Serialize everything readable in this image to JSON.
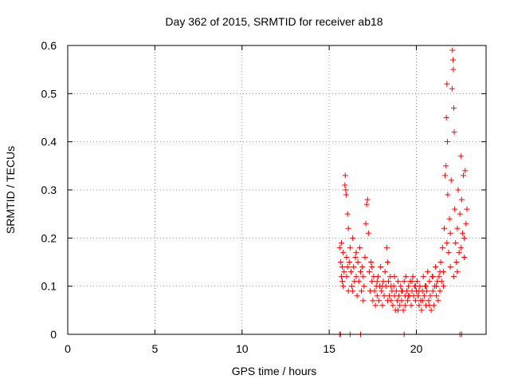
{
  "chart_data": {
    "type": "scatter",
    "title": "Day 362 of 2015, SRMTID for receiver ab18",
    "xlabel": "GPS time / hours",
    "ylabel": "SRMTID / TECUs",
    "xlim": [
      0,
      24
    ],
    "ylim": [
      0,
      0.6
    ],
    "xticks": [
      "0",
      "5",
      "10",
      "15",
      "20"
    ],
    "yticks": [
      "0",
      "0.1",
      "0.2",
      "0.3",
      "0.4",
      "0.5",
      "0.6"
    ],
    "grid": true,
    "marker": "+",
    "color": "#ff0000",
    "series": [
      {
        "name": "SRMTID",
        "points": [
          [
            15.6,
            0.0
          ],
          [
            15.65,
            0.0
          ],
          [
            16.2,
            0.0
          ],
          [
            16.8,
            0.0
          ],
          [
            19.3,
            0.0
          ],
          [
            22.5,
            0.0
          ],
          [
            22.6,
            0.0
          ],
          [
            15.6,
            0.18
          ],
          [
            15.65,
            0.15
          ],
          [
            15.7,
            0.12
          ],
          [
            15.7,
            0.19
          ],
          [
            15.75,
            0.14
          ],
          [
            15.8,
            0.1
          ],
          [
            15.8,
            0.17
          ],
          [
            15.85,
            0.13
          ],
          [
            15.9,
            0.31
          ],
          [
            15.92,
            0.33
          ],
          [
            15.95,
            0.3
          ],
          [
            15.97,
            0.29
          ],
          [
            16.0,
            0.16
          ],
          [
            16.0,
            0.12
          ],
          [
            16.05,
            0.25
          ],
          [
            16.1,
            0.22
          ],
          [
            16.1,
            0.09
          ],
          [
            16.15,
            0.15
          ],
          [
            16.2,
            0.18
          ],
          [
            16.25,
            0.13
          ],
          [
            16.3,
            0.1
          ],
          [
            16.35,
            0.2
          ],
          [
            16.4,
            0.14
          ],
          [
            16.45,
            0.11
          ],
          [
            16.5,
            0.16
          ],
          [
            16.55,
            0.12
          ],
          [
            16.6,
            0.08
          ],
          [
            16.65,
            0.15
          ],
          [
            16.7,
            0.11
          ],
          [
            16.75,
            0.18
          ],
          [
            16.8,
            0.13
          ],
          [
            16.85,
            0.09
          ],
          [
            16.9,
            0.14
          ],
          [
            16.95,
            0.12
          ],
          [
            17.0,
            0.1
          ],
          [
            17.05,
            0.16
          ],
          [
            17.1,
            0.23
          ],
          [
            17.15,
            0.27
          ],
          [
            17.2,
            0.28
          ],
          [
            17.25,
            0.21
          ],
          [
            17.3,
            0.13
          ],
          [
            17.35,
            0.09
          ],
          [
            17.4,
            0.15
          ],
          [
            17.45,
            0.11
          ],
          [
            17.5,
            0.07
          ],
          [
            17.55,
            0.12
          ],
          [
            17.6,
            0.09
          ],
          [
            17.65,
            0.06
          ],
          [
            17.7,
            0.1
          ],
          [
            17.75,
            0.08
          ],
          [
            17.8,
            0.12
          ],
          [
            17.85,
            0.07
          ],
          [
            17.9,
            0.1
          ],
          [
            17.95,
            0.14
          ],
          [
            18.0,
            0.09
          ],
          [
            18.05,
            0.06
          ],
          [
            18.1,
            0.11
          ],
          [
            18.15,
            0.08
          ],
          [
            18.2,
            0.13
          ],
          [
            18.25,
            0.1
          ],
          [
            18.3,
            0.18
          ],
          [
            18.35,
            0.15
          ],
          [
            18.4,
            0.11
          ],
          [
            18.45,
            0.08
          ],
          [
            18.5,
            0.12
          ],
          [
            18.55,
            0.07
          ],
          [
            18.6,
            0.09
          ],
          [
            18.65,
            0.06
          ],
          [
            18.7,
            0.1
          ],
          [
            18.75,
            0.08
          ],
          [
            18.8,
            0.05
          ],
          [
            18.85,
            0.09
          ],
          [
            18.9,
            0.07
          ],
          [
            18.95,
            0.11
          ],
          [
            19.0,
            0.08
          ],
          [
            19.05,
            0.06
          ],
          [
            19.1,
            0.1
          ],
          [
            19.15,
            0.07
          ],
          [
            19.2,
            0.09
          ],
          [
            19.25,
            0.05
          ],
          [
            19.3,
            0.11
          ],
          [
            19.35,
            0.08
          ],
          [
            19.4,
            0.12
          ],
          [
            19.45,
            0.09
          ],
          [
            19.5,
            0.07
          ],
          [
            19.55,
            0.1
          ],
          [
            19.6,
            0.08
          ],
          [
            19.65,
            0.11
          ],
          [
            19.7,
            0.06
          ],
          [
            19.75,
            0.09
          ],
          [
            19.8,
            0.12
          ],
          [
            19.85,
            0.08
          ],
          [
            19.9,
            0.1
          ],
          [
            19.95,
            0.07
          ],
          [
            20.0,
            0.09
          ],
          [
            20.05,
            0.11
          ],
          [
            20.1,
            0.08
          ],
          [
            20.15,
            0.06
          ],
          [
            20.2,
            0.1
          ],
          [
            20.25,
            0.07
          ],
          [
            20.3,
            0.05
          ],
          [
            20.35,
            0.09
          ],
          [
            20.4,
            0.12
          ],
          [
            20.45,
            0.08
          ],
          [
            20.5,
            0.1
          ],
          [
            20.55,
            0.06
          ],
          [
            20.6,
            0.09
          ],
          [
            20.65,
            0.13
          ],
          [
            20.7,
            0.07
          ],
          [
            20.75,
            0.11
          ],
          [
            20.8,
            0.08
          ],
          [
            20.85,
            0.05
          ],
          [
            20.9,
            0.12
          ],
          [
            20.95,
            0.09
          ],
          [
            21.0,
            0.06
          ],
          [
            21.05,
            0.1
          ],
          [
            21.1,
            0.14
          ],
          [
            21.15,
            0.08
          ],
          [
            21.2,
            0.11
          ],
          [
            21.25,
            0.07
          ],
          [
            21.3,
            0.12
          ],
          [
            21.35,
            0.09
          ],
          [
            21.4,
            0.15
          ],
          [
            21.45,
            0.11
          ],
          [
            21.5,
            0.18
          ],
          [
            21.55,
            0.13
          ],
          [
            21.6,
            0.22
          ],
          [
            21.65,
            0.33
          ],
          [
            21.7,
            0.35
          ],
          [
            21.72,
            0.45
          ],
          [
            21.75,
            0.52
          ],
          [
            21.78,
            0.4
          ],
          [
            21.8,
            0.29
          ],
          [
            21.85,
            0.17
          ],
          [
            21.9,
            0.24
          ],
          [
            21.95,
            0.14
          ],
          [
            22.0,
            0.32
          ],
          [
            22.05,
            0.51
          ],
          [
            22.07,
            0.59
          ],
          [
            22.1,
            0.57
          ],
          [
            22.12,
            0.55
          ],
          [
            22.15,
            0.47
          ],
          [
            22.17,
            0.42
          ],
          [
            22.2,
            0.26
          ],
          [
            22.25,
            0.19
          ],
          [
            22.3,
            0.15
          ],
          [
            22.35,
            0.22
          ],
          [
            22.4,
            0.3
          ],
          [
            22.45,
            0.17
          ],
          [
            22.5,
            0.25
          ],
          [
            22.55,
            0.37
          ],
          [
            22.6,
            0.28
          ],
          [
            22.65,
            0.21
          ],
          [
            22.7,
            0.33
          ],
          [
            22.75,
            0.16
          ],
          [
            22.8,
            0.34
          ],
          [
            22.85,
            0.23
          ],
          [
            22.9,
            0.26
          ],
          [
            15.75,
            0.11
          ],
          [
            16.05,
            0.14
          ],
          [
            16.35,
            0.09
          ],
          [
            16.55,
            0.17
          ],
          [
            16.95,
            0.07
          ],
          [
            17.45,
            0.14
          ],
          [
            17.75,
            0.11
          ],
          [
            18.05,
            0.1
          ],
          [
            18.35,
            0.07
          ],
          [
            18.55,
            0.1
          ],
          [
            18.75,
            0.12
          ],
          [
            18.95,
            0.05
          ],
          [
            19.15,
            0.09
          ],
          [
            19.35,
            0.06
          ],
          [
            19.55,
            0.08
          ],
          [
            19.75,
            0.11
          ],
          [
            19.95,
            0.1
          ],
          [
            20.15,
            0.09
          ],
          [
            20.35,
            0.07
          ],
          [
            20.55,
            0.1
          ],
          [
            20.75,
            0.06
          ],
          [
            20.95,
            0.12
          ],
          [
            21.15,
            0.1
          ],
          [
            21.35,
            0.13
          ],
          [
            21.55,
            0.1
          ],
          [
            21.75,
            0.19
          ],
          [
            21.95,
            0.21
          ],
          [
            22.15,
            0.12
          ],
          [
            22.35,
            0.13
          ],
          [
            22.55,
            0.18
          ],
          [
            22.75,
            0.2
          ]
        ]
      }
    ]
  }
}
